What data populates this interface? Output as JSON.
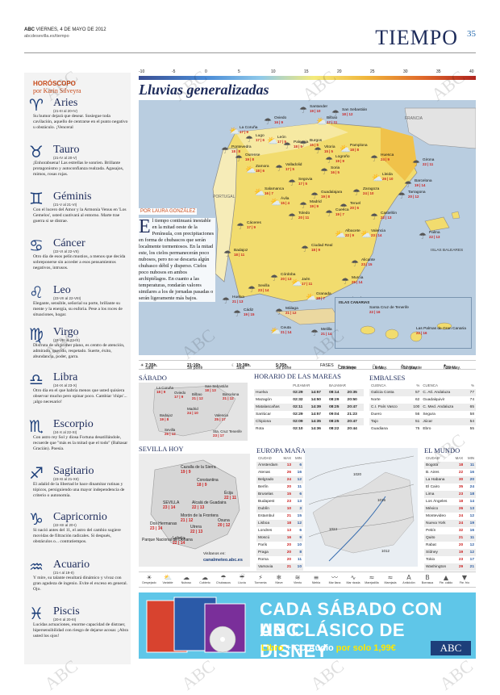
{
  "header": {
    "brand": "ABC",
    "date_line": "VIERNES, 4 DE MAYO DE 2012",
    "url": "abcdesevilla.es/tiempo",
    "section": "TIEMPO",
    "page": "35"
  },
  "horoscope": {
    "title": "HORÓSCOPO",
    "author": "por Karin Silveyra",
    "signs": [
      {
        "glyph": "♈",
        "name": "Aries",
        "dates": "(21-III al 20-IV)",
        "text": "Su humor dejará que desear. Sosiegue toda cavilación, aquello de centrarse en el punto negativo u obstáculo. ¡Venceral"
      },
      {
        "glyph": "♉",
        "name": "Tauro",
        "dates": "(21-IV al 20-V)",
        "text": "¡Enhorabuena! Las estrellas le sonríen. Brillante protagonismo y autoconfianza realzada. Agasajos, mimos, rosas rojas."
      },
      {
        "glyph": "♊",
        "name": "Géminis",
        "dates": "(21-V al 21-VI)",
        "text": "Con el lucero del Amor y la Armonía Venus en 'Los Gemelos', usted cautivará al entorno. Marte trae guerra si se distrae."
      },
      {
        "glyph": "♋",
        "name": "Cáncer",
        "dates": "(22-VI al 22-VII)",
        "text": "Otro día de esos pelín mustios, a menos que decida sobreponerse sin acceder a esos pensamientos negativos, intrusos."
      },
      {
        "glyph": "♌",
        "name": "Leo",
        "dates": "(23-VII al 22-VIII)",
        "text": "Elegante, sensible, señorial su porte, brillante su mente y la energía, su euforia. Pese a los roces de situaciones, hogar."
      },
      {
        "glyph": "♍",
        "name": "Virgo",
        "dates": "(23-VIII al 23-IX)",
        "text": "Disfruta de un primer plano, es centro de atención, admirado, querido, respetado. Suerte, éxito, abundancia, poder, garra."
      },
      {
        "glyph": "♎",
        "name": "Libra",
        "dates": "(24-IX al 23-X)",
        "text": "Otro día en el que habría menos que usted quisiera observar mucho pero opinar poco. Cambiar 'chips'... ¡algo necesario!"
      },
      {
        "glyph": "♏",
        "name": "Escorpio",
        "dates": "(24-X al 22-XI)",
        "text": "Con astro rey Sol y diosa Fortuna desatillándole, recuerde que \"más es la mitad que el todo\" (Baltasar Gracián). Poesía."
      },
      {
        "glyph": "♐",
        "name": "Sagitario",
        "dates": "(23-XI al 21-XII)",
        "text": "El adalid de la libertad le hace dinamitar rutinas y tópicos, persiguiendo una mayor independencia de criterio o autonomía."
      },
      {
        "glyph": "♑",
        "name": "Capricornio",
        "dates": "(22-XII al 20-I)",
        "text": "Si nació antes del 11, el astro del cambio sugiere movidas de filtración radicales. Si después, obstáculos o... contratiempos."
      },
      {
        "glyph": "♒",
        "name": "Acuario",
        "dates": "(21-I al 19-II)",
        "text": "Y mire, su talante resultará dinámico y vivaz con gran agudeza de ingenio. Evite el exceso en general. Ojo."
      },
      {
        "glyph": "♓",
        "name": "Piscis",
        "dates": "(20-II al 20-III)",
        "text": "Lucidas actuaciones, enorme capacidad de distraer, hipersensibilidad con riesgo de dejarse acosar. ¡Abra usted los ojos!"
      }
    ]
  },
  "map": {
    "scale_values": [
      "-10",
      "-5",
      "0",
      "5",
      "10",
      "15",
      "20",
      "25",
      "30",
      "35",
      "40"
    ],
    "headline": "Lluvias generalizadas",
    "byline": "POR LAURA GONZÁLEZ",
    "article_drop": "E",
    "article": "l tiempo continuará inestable en la mitad oeste de la Península, con precipitaciones en forma de chubascos que serán localmente tormentosos. En la mitad este, los cielos permanecerán poco nubosos, pero no se descarta algún chubasco débil y disperso. Cielos poco nubosos en ambos archipiélagos. En cuanto a las temperaturas, rondarán valores similares a los de jornadas pasadas o serán ligeramente más bajos.",
    "labels": {
      "portugal": "PORTUGAL",
      "francia": "FRANCIA",
      "baleares": "ISLAS BALEARES",
      "canarias": "ISLAS CANARIAS"
    },
    "cities": [
      {
        "name": "La Coruña",
        "temps": "17 | 9"
      },
      {
        "name": "Oviedo",
        "temps": "16 | 9"
      },
      {
        "name": "Santander",
        "temps": "19 | 10"
      },
      {
        "name": "San Sebastián",
        "temps": "18 | 12"
      },
      {
        "name": "Bilbao",
        "temps": "17 | 11"
      },
      {
        "name": "Lugo",
        "temps": "17 | 6"
      },
      {
        "name": "Pontevedra",
        "temps": "18 | 8"
      },
      {
        "name": "Ourense",
        "temps": "19 | 8"
      },
      {
        "name": "León",
        "temps": "17 | 5"
      },
      {
        "name": "Palencia",
        "temps": "18 | 5"
      },
      {
        "name": "Burgos",
        "temps": "15 | 5"
      },
      {
        "name": "Vitoria",
        "temps": "15 | 5"
      },
      {
        "name": "Pamplona",
        "temps": "18 | 8"
      },
      {
        "name": "Logroño",
        "temps": "19 | 9"
      },
      {
        "name": "Huesca",
        "temps": "24 | 9"
      },
      {
        "name": "Girona",
        "temps": "22 | 11"
      },
      {
        "name": "Lleida",
        "temps": "26 | 10"
      },
      {
        "name": "Barcelona",
        "temps": "19 | 14"
      },
      {
        "name": "Zaragoza",
        "temps": "24 | 10"
      },
      {
        "name": "Tarragona",
        "temps": "20 | 12"
      },
      {
        "name": "Zamora",
        "temps": "18 | 6"
      },
      {
        "name": "Valladolid",
        "temps": "17 | 5"
      },
      {
        "name": "Soria",
        "temps": "16 | 5"
      },
      {
        "name": "Segovia",
        "temps": "17 | 5"
      },
      {
        "name": "Salamanca",
        "temps": "16 | 7"
      },
      {
        "name": "Guadalajara",
        "temps": "19 | 8"
      },
      {
        "name": "Teruel",
        "temps": "20 | 6"
      },
      {
        "name": "Castellón",
        "temps": "22 | 13"
      },
      {
        "name": "Ávila",
        "temps": "15 | 4"
      },
      {
        "name": "Madrid",
        "temps": "19 | 9"
      },
      {
        "name": "Cuenca",
        "temps": "19 | 7"
      },
      {
        "name": "Toledo",
        "temps": "20 | 11"
      },
      {
        "name": "Valencia",
        "temps": "23 | 14"
      },
      {
        "name": "Palma",
        "temps": "22 | 13"
      },
      {
        "name": "Cáceres",
        "temps": "17 | 9"
      },
      {
        "name": "Ciudad Real",
        "temps": "18 | 9"
      },
      {
        "name": "Albacete",
        "temps": "22 | 9"
      },
      {
        "name": "Alicante",
        "temps": "23 | 15"
      },
      {
        "name": "Badajoz",
        "temps": "18 | 11"
      },
      {
        "name": "Córdoba",
        "temps": "20 | 13"
      },
      {
        "name": "Jaén",
        "temps": "17 | 11"
      },
      {
        "name": "Murcia",
        "temps": "25 | 14"
      },
      {
        "name": "Huelva",
        "temps": "21 | 13"
      },
      {
        "name": "Sevilla",
        "temps": "23 | 14"
      },
      {
        "name": "Granada",
        "temps": "18 | 7"
      },
      {
        "name": "Almería",
        "temps": "24 | 13"
      },
      {
        "name": "Cádiz",
        "temps": "19 | 15"
      },
      {
        "name": "Málaga",
        "temps": "21 | 12"
      },
      {
        "name": "Ceuta",
        "temps": "21 | 14"
      },
      {
        "name": "Melilla",
        "temps": "21 | 14"
      },
      {
        "name": "Santa Cruz de Tenerife",
        "temps": "22 | 16"
      },
      {
        "name": "Las Palmas de Gran Canaria",
        "temps": "22 | 16"
      }
    ]
  },
  "sunstrip": {
    "sale_label": "Sale",
    "sale_time": "7:35h.",
    "pone_label": "Se pone",
    "pone_time": "21:16h.",
    "sale2_label": "Sale",
    "sale2_time": "19:38h.",
    "pone2_label": "Se pone",
    "pone2_time": "5:35h.",
    "fases": "FASES",
    "creciente": "Creciente",
    "creciente_date": "28 Mayo",
    "llena": "Llena",
    "llena_date": "6 May.",
    "menguante": "Menguante",
    "menguante_date": "12 May.",
    "nueva": "Nueva",
    "nueva_date": "20 May."
  },
  "sabado": {
    "title": "SÁBADO",
    "cities": [
      {
        "name": "La Coruña",
        "temps": "18 | 9"
      },
      {
        "name": "San Sebastián",
        "temps": "18 | 13"
      },
      {
        "name": "Oviedo",
        "temps": "17 | 9"
      },
      {
        "name": "Bilbao",
        "temps": "21 | 12"
      },
      {
        "name": "Barcelona",
        "temps": "21 | 12"
      },
      {
        "name": "Madrid",
        "temps": "24 | 10"
      },
      {
        "name": "Badajoz",
        "temps": "19 | 8"
      },
      {
        "name": "Valencia",
        "temps": "25 | 17"
      },
      {
        "name": "Sevilla",
        "temps": "26 | 12"
      },
      {
        "name": "Sta. Cruz Tenerife",
        "temps": "23 | 17"
      }
    ]
  },
  "mareas": {
    "title": "HORARIO DE LAS MAREAS",
    "col_pleamar": "PLEAMAR",
    "col_bajamar": "BAJAMAR",
    "rows": [
      {
        "place": "Huelva",
        "p1": "02:29",
        "p2": "14:57",
        "b1": "08:14",
        "b2": "20:35"
      },
      {
        "place": "Mazagón",
        "p1": "02:32",
        "p2": "14:50",
        "b1": "08:29",
        "b2": "20:50"
      },
      {
        "place": "Matalascañas",
        "p1": "02:11",
        "p2": "14:39",
        "b1": "08:25",
        "b2": "20:47"
      },
      {
        "place": "Sanlúcar",
        "p1": "02:29",
        "p2": "14:57",
        "b1": "09:04",
        "b2": "21:23"
      },
      {
        "place": "Chipiona",
        "p1": "02:09",
        "p2": "14:35",
        "b1": "08:25",
        "b2": "20:47"
      },
      {
        "place": "Rota",
        "p1": "02:10",
        "p2": "14:36",
        "b1": "08:22",
        "b2": "20:44"
      }
    ]
  },
  "embalses": {
    "title": "EMBALSES",
    "col_cuenca": "CUENCA",
    "col_pct": "%",
    "left": [
      {
        "name": "Galicia Costa",
        "pct": "57"
      },
      {
        "name": "Norte",
        "pct": "62"
      },
      {
        "name": "C.I. País Vasco",
        "pct": "100"
      },
      {
        "name": "Duero",
        "pct": "56"
      },
      {
        "name": "Tajo",
        "pct": "51"
      },
      {
        "name": "Guadiana",
        "pct": "75"
      }
    ],
    "right": [
      {
        "name": "C. Atl. Andaluza",
        "pct": "77"
      },
      {
        "name": "Guadalquivir",
        "pct": "74"
      },
      {
        "name": "C. Med. Andaluza",
        "pct": "65"
      },
      {
        "name": "Segura",
        "pct": "58"
      },
      {
        "name": "Júcar",
        "pct": "54"
      },
      {
        "name": "Ebro",
        "pct": "55"
      }
    ]
  },
  "sevilla_hoy": {
    "title": "SEVILLA HOY",
    "visit_label": "Visítanos en:",
    "visit_url": "canalmeteo.abc.es",
    "cities": [
      {
        "name": "Cazalla de la Sierra",
        "temps": "19 | 9"
      },
      {
        "name": "Constantina",
        "temps": "18 | 9"
      },
      {
        "name": "Écija",
        "temps": "22 | 11"
      },
      {
        "name": "SEVILLA",
        "temps": "23 | 14"
      },
      {
        "name": "Alcalá de Guadaira",
        "temps": "22 | 13"
      },
      {
        "name": "Morón de la Frontera",
        "temps": "21 | 12"
      },
      {
        "name": "Osuna",
        "temps": "20 | 12"
      },
      {
        "name": "Dos Hermanas",
        "temps": "23 | 14"
      },
      {
        "name": "Utrera",
        "temps": "22 | 13"
      },
      {
        "name": "Lebrija",
        "temps": "22 | 14"
      },
      {
        "name": "Parque Nacional de Doñana",
        "temps": ""
      }
    ]
  },
  "europa": {
    "title": "EUROPA MAÑANA",
    "col_city": "CIUDAD",
    "col_max": "MAX",
    "col_min": "MIN",
    "rows": [
      {
        "city": "Ámsterdam",
        "max": "13",
        "min": "6"
      },
      {
        "city": "Atenas",
        "max": "26",
        "min": "16"
      },
      {
        "city": "Belgrado",
        "max": "24",
        "min": "12"
      },
      {
        "city": "Berlín",
        "max": "20",
        "min": "11"
      },
      {
        "city": "Bruselas",
        "max": "15",
        "min": "6"
      },
      {
        "city": "Budapest",
        "max": "23",
        "min": "13"
      },
      {
        "city": "Dublín",
        "max": "10",
        "min": "3"
      },
      {
        "city": "Estambul",
        "max": "21",
        "min": "15"
      },
      {
        "city": "Lisboa",
        "max": "18",
        "min": "12"
      },
      {
        "city": "Londres",
        "max": "13",
        "min": "6"
      },
      {
        "city": "Moscú",
        "max": "16",
        "min": "9"
      },
      {
        "city": "París",
        "max": "20",
        "min": "10"
      },
      {
        "city": "Praga",
        "max": "20",
        "min": "8"
      },
      {
        "city": "Roma",
        "max": "20",
        "min": "11"
      },
      {
        "city": "Varsovia",
        "max": "21",
        "min": "10"
      }
    ],
    "isobars": [
      "1020",
      "1016",
      "1024",
      "1012"
    ]
  },
  "mundo": {
    "title": "EL MUNDO",
    "col_city": "CIUDAD",
    "col_max": "MAX",
    "col_min": "MIN",
    "rows": [
      {
        "city": "Bogotá",
        "max": "18",
        "min": "11"
      },
      {
        "city": "B. Aires",
        "max": "22",
        "min": "16"
      },
      {
        "city": "La Habana",
        "max": "30",
        "min": "20"
      },
      {
        "city": "El Cairo",
        "max": "35",
        "min": "24"
      },
      {
        "city": "Lima",
        "max": "23",
        "min": "18"
      },
      {
        "city": "Los Ángeles",
        "max": "18",
        "min": "14"
      },
      {
        "city": "México",
        "max": "26",
        "min": "13"
      },
      {
        "city": "Montevideo",
        "max": "24",
        "min": "12"
      },
      {
        "city": "Nueva York",
        "max": "24",
        "min": "19"
      },
      {
        "city": "Pekín",
        "max": "32",
        "min": "16"
      },
      {
        "city": "Quito",
        "max": "21",
        "min": "11"
      },
      {
        "city": "Rabat",
        "max": "20",
        "min": "12"
      },
      {
        "city": "Sídney",
        "max": "19",
        "min": "12"
      },
      {
        "city": "Tokio",
        "max": "23",
        "min": "17"
      },
      {
        "city": "Washington",
        "max": "29",
        "min": "21"
      }
    ]
  },
  "legend": [
    {
      "icon": "☀",
      "label": "Despejado"
    },
    {
      "icon": "⛅",
      "label": "Variable"
    },
    {
      "icon": "☁",
      "label": "Nuboso"
    },
    {
      "icon": "☁",
      "label": "Cubierto"
    },
    {
      "icon": "☂",
      "label": "Chubascos"
    },
    {
      "icon": "☔",
      "label": "Lluvia"
    },
    {
      "icon": "⚡",
      "label": "Tormenta"
    },
    {
      "icon": "❄",
      "label": "Nieve"
    },
    {
      "icon": "≋",
      "label": "Viento"
    },
    {
      "icon": "≡",
      "label": "Niebla"
    },
    {
      "icon": "〰",
      "label": "Mar llana"
    },
    {
      "icon": "∿",
      "label": "Mar rizada"
    },
    {
      "icon": "≈",
      "label": "Marejadilla"
    },
    {
      "icon": "≈",
      "label": "Marejada"
    },
    {
      "icon": "A",
      "label": "Anticiclón"
    },
    {
      "icon": "B",
      "label": "Borrasca"
    },
    {
      "icon": "▲",
      "label": "Fte. cálido"
    },
    {
      "icon": "▼",
      "label": "Fte. frío"
    }
  ],
  "ad": {
    "line1": "CADA SÁBADO CON ABC",
    "line2": "UN CLÁSICO DE DISNEY",
    "line3_a": "Libro",
    "line3_b": " + CD Audio ",
    "line3_c": "por solo 1,99€",
    "logo": "ABC"
  },
  "watermark": "ABC"
}
